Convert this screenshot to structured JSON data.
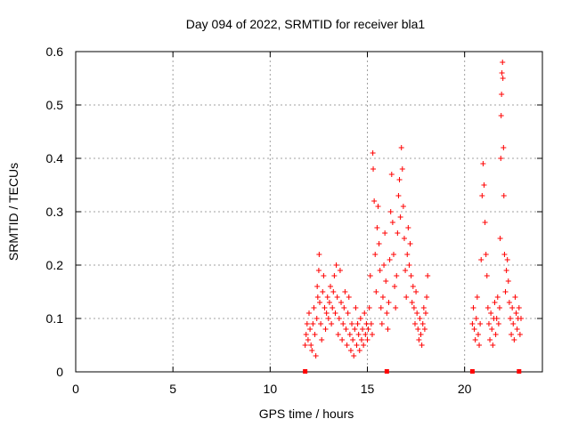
{
  "chart_data": {
    "type": "scatter",
    "title": "Day 094 of 2022, SRMTID for receiver bla1",
    "xlabel": "GPS time / hours",
    "ylabel": "SRMTID / TECUs",
    "xlim": [
      0,
      24
    ],
    "ylim": [
      0,
      0.6
    ],
    "x_ticks": [
      0,
      5,
      10,
      15,
      20
    ],
    "x_tick_labels": [
      "0",
      "5",
      "10",
      "15",
      "20"
    ],
    "y_ticks": [
      0,
      0.1,
      0.2,
      0.3,
      0.4,
      0.5,
      0.6
    ],
    "y_tick_labels": [
      "0",
      "0.1",
      "0.2",
      "0.3",
      "0.4",
      "0.5",
      "0.6"
    ],
    "grid": true,
    "marker": "plus",
    "color": "#ff0000",
    "series": [
      {
        "name": "SRMTID",
        "points": [
          [
            11.8,
            0.05
          ],
          [
            11.85,
            0.07
          ],
          [
            11.9,
            0.09
          ],
          [
            11.95,
            0.06
          ],
          [
            12.0,
            0.11
          ],
          [
            12.05,
            0.08
          ],
          [
            12.1,
            0.05
          ],
          [
            12.15,
            0.04
          ],
          [
            12.2,
            0.09
          ],
          [
            12.25,
            0.12
          ],
          [
            12.3,
            0.07
          ],
          [
            12.35,
            0.03
          ],
          [
            12.4,
            0.1
          ],
          [
            12.42,
            0.16
          ],
          [
            12.45,
            0.14
          ],
          [
            12.5,
            0.19
          ],
          [
            12.52,
            0.22
          ],
          [
            12.55,
            0.13
          ],
          [
            12.6,
            0.09
          ],
          [
            12.65,
            0.06
          ],
          [
            12.7,
            0.15
          ],
          [
            12.75,
            0.18
          ],
          [
            12.8,
            0.12
          ],
          [
            12.85,
            0.08
          ],
          [
            12.9,
            0.11
          ],
          [
            12.95,
            0.14
          ],
          [
            13.0,
            0.1
          ],
          [
            13.05,
            0.13
          ],
          [
            13.1,
            0.16
          ],
          [
            13.15,
            0.09
          ],
          [
            13.2,
            0.12
          ],
          [
            13.25,
            0.15
          ],
          [
            13.3,
            0.18
          ],
          [
            13.35,
            0.11
          ],
          [
            13.4,
            0.2
          ],
          [
            13.45,
            0.14
          ],
          [
            13.5,
            0.07
          ],
          [
            13.55,
            0.1
          ],
          [
            13.6,
            0.19
          ],
          [
            13.65,
            0.13
          ],
          [
            13.7,
            0.06
          ],
          [
            13.75,
            0.09
          ],
          [
            13.8,
            0.12
          ],
          [
            13.85,
            0.15
          ],
          [
            13.9,
            0.08
          ],
          [
            13.95,
            0.05
          ],
          [
            14.0,
            0.11
          ],
          [
            14.05,
            0.14
          ],
          [
            14.1,
            0.07
          ],
          [
            14.15,
            0.04
          ],
          [
            14.2,
            0.09
          ],
          [
            14.25,
            0.06
          ],
          [
            14.3,
            0.03
          ],
          [
            14.35,
            0.08
          ],
          [
            14.4,
            0.12
          ],
          [
            14.45,
            0.05
          ],
          [
            14.5,
            0.09
          ],
          [
            14.55,
            0.07
          ],
          [
            14.6,
            0.04
          ],
          [
            14.65,
            0.1
          ],
          [
            14.7,
            0.06
          ],
          [
            14.75,
            0.08
          ],
          [
            14.8,
            0.05
          ],
          [
            14.85,
            0.11
          ],
          [
            14.9,
            0.07
          ],
          [
            14.95,
            0.09
          ],
          [
            15.0,
            0.06
          ],
          [
            15.05,
            0.08
          ],
          [
            15.1,
            0.12
          ],
          [
            15.15,
            0.18
          ],
          [
            15.2,
            0.09
          ],
          [
            15.25,
            0.07
          ],
          [
            15.28,
            0.41
          ],
          [
            15.3,
            0.38
          ],
          [
            15.35,
            0.32
          ],
          [
            15.4,
            0.22
          ],
          [
            15.45,
            0.15
          ],
          [
            15.5,
            0.27
          ],
          [
            15.55,
            0.31
          ],
          [
            15.6,
            0.24
          ],
          [
            15.65,
            0.19
          ],
          [
            15.7,
            0.12
          ],
          [
            15.75,
            0.09
          ],
          [
            15.8,
            0.14
          ],
          [
            15.85,
            0.2
          ],
          [
            15.9,
            0.26
          ],
          [
            15.95,
            0.17
          ],
          [
            16.0,
            0.11
          ],
          [
            16.05,
            0.08
          ],
          [
            16.1,
            0.13
          ],
          [
            16.15,
            0.21
          ],
          [
            16.2,
            0.3
          ],
          [
            16.25,
            0.37
          ],
          [
            16.3,
            0.28
          ],
          [
            16.35,
            0.22
          ],
          [
            16.4,
            0.16
          ],
          [
            16.45,
            0.12
          ],
          [
            16.5,
            0.18
          ],
          [
            16.55,
            0.26
          ],
          [
            16.6,
            0.33
          ],
          [
            16.65,
            0.36
          ],
          [
            16.7,
            0.29
          ],
          [
            16.75,
            0.42
          ],
          [
            16.8,
            0.38
          ],
          [
            16.85,
            0.31
          ],
          [
            16.9,
            0.25
          ],
          [
            16.95,
            0.19
          ],
          [
            17.0,
            0.14
          ],
          [
            17.05,
            0.22
          ],
          [
            17.1,
            0.27
          ],
          [
            17.15,
            0.2
          ],
          [
            17.2,
            0.24
          ],
          [
            17.25,
            0.18
          ],
          [
            17.3,
            0.13
          ],
          [
            17.35,
            0.16
          ],
          [
            17.4,
            0.12
          ],
          [
            17.45,
            0.09
          ],
          [
            17.5,
            0.15
          ],
          [
            17.55,
            0.11
          ],
          [
            17.6,
            0.08
          ],
          [
            17.65,
            0.06
          ],
          [
            17.7,
            0.1
          ],
          [
            17.75,
            0.07
          ],
          [
            17.8,
            0.05
          ],
          [
            17.85,
            0.09
          ],
          [
            17.9,
            0.12
          ],
          [
            17.95,
            0.08
          ],
          [
            18.0,
            0.11
          ],
          [
            18.05,
            0.14
          ],
          [
            18.1,
            0.18
          ],
          [
            20.4,
            0.09
          ],
          [
            20.45,
            0.12
          ],
          [
            20.5,
            0.08
          ],
          [
            20.55,
            0.06
          ],
          [
            20.6,
            0.1
          ],
          [
            20.65,
            0.14
          ],
          [
            20.7,
            0.07
          ],
          [
            20.75,
            0.05
          ],
          [
            20.8,
            0.09
          ],
          [
            20.85,
            0.21
          ],
          [
            20.9,
            0.33
          ],
          [
            20.95,
            0.39
          ],
          [
            21.0,
            0.35
          ],
          [
            21.05,
            0.28
          ],
          [
            21.1,
            0.22
          ],
          [
            21.15,
            0.18
          ],
          [
            21.2,
            0.12
          ],
          [
            21.25,
            0.09
          ],
          [
            21.3,
            0.06
          ],
          [
            21.35,
            0.11
          ],
          [
            21.4,
            0.08
          ],
          [
            21.45,
            0.05
          ],
          [
            21.5,
            0.1
          ],
          [
            21.55,
            0.13
          ],
          [
            21.6,
            0.07
          ],
          [
            21.65,
            0.1
          ],
          [
            21.7,
            0.14
          ],
          [
            21.75,
            0.09
          ],
          [
            21.8,
            0.12
          ],
          [
            21.83,
            0.25
          ],
          [
            21.86,
            0.4
          ],
          [
            21.88,
            0.48
          ],
          [
            21.9,
            0.52
          ],
          [
            21.92,
            0.56
          ],
          [
            21.95,
            0.58
          ],
          [
            21.97,
            0.55
          ],
          [
            22.0,
            0.42
          ],
          [
            22.02,
            0.33
          ],
          [
            22.05,
            0.22
          ],
          [
            22.1,
            0.15
          ],
          [
            22.15,
            0.19
          ],
          [
            22.2,
            0.21
          ],
          [
            22.25,
            0.17
          ],
          [
            22.3,
            0.13
          ],
          [
            22.35,
            0.1
          ],
          [
            22.4,
            0.07
          ],
          [
            22.45,
            0.12
          ],
          [
            22.5,
            0.09
          ],
          [
            22.55,
            0.06
          ],
          [
            22.6,
            0.14
          ],
          [
            22.65,
            0.11
          ],
          [
            22.7,
            0.08
          ],
          [
            22.75,
            0.1
          ],
          [
            22.8,
            0.12
          ],
          [
            22.85,
            0.07
          ],
          [
            22.9,
            0.1
          ]
        ]
      },
      {
        "name": "markers_at_zero",
        "marker": "square",
        "points": [
          [
            11.8,
            0
          ],
          [
            16.0,
            0
          ],
          [
            20.4,
            0
          ],
          [
            22.8,
            0
          ]
        ]
      }
    ]
  }
}
